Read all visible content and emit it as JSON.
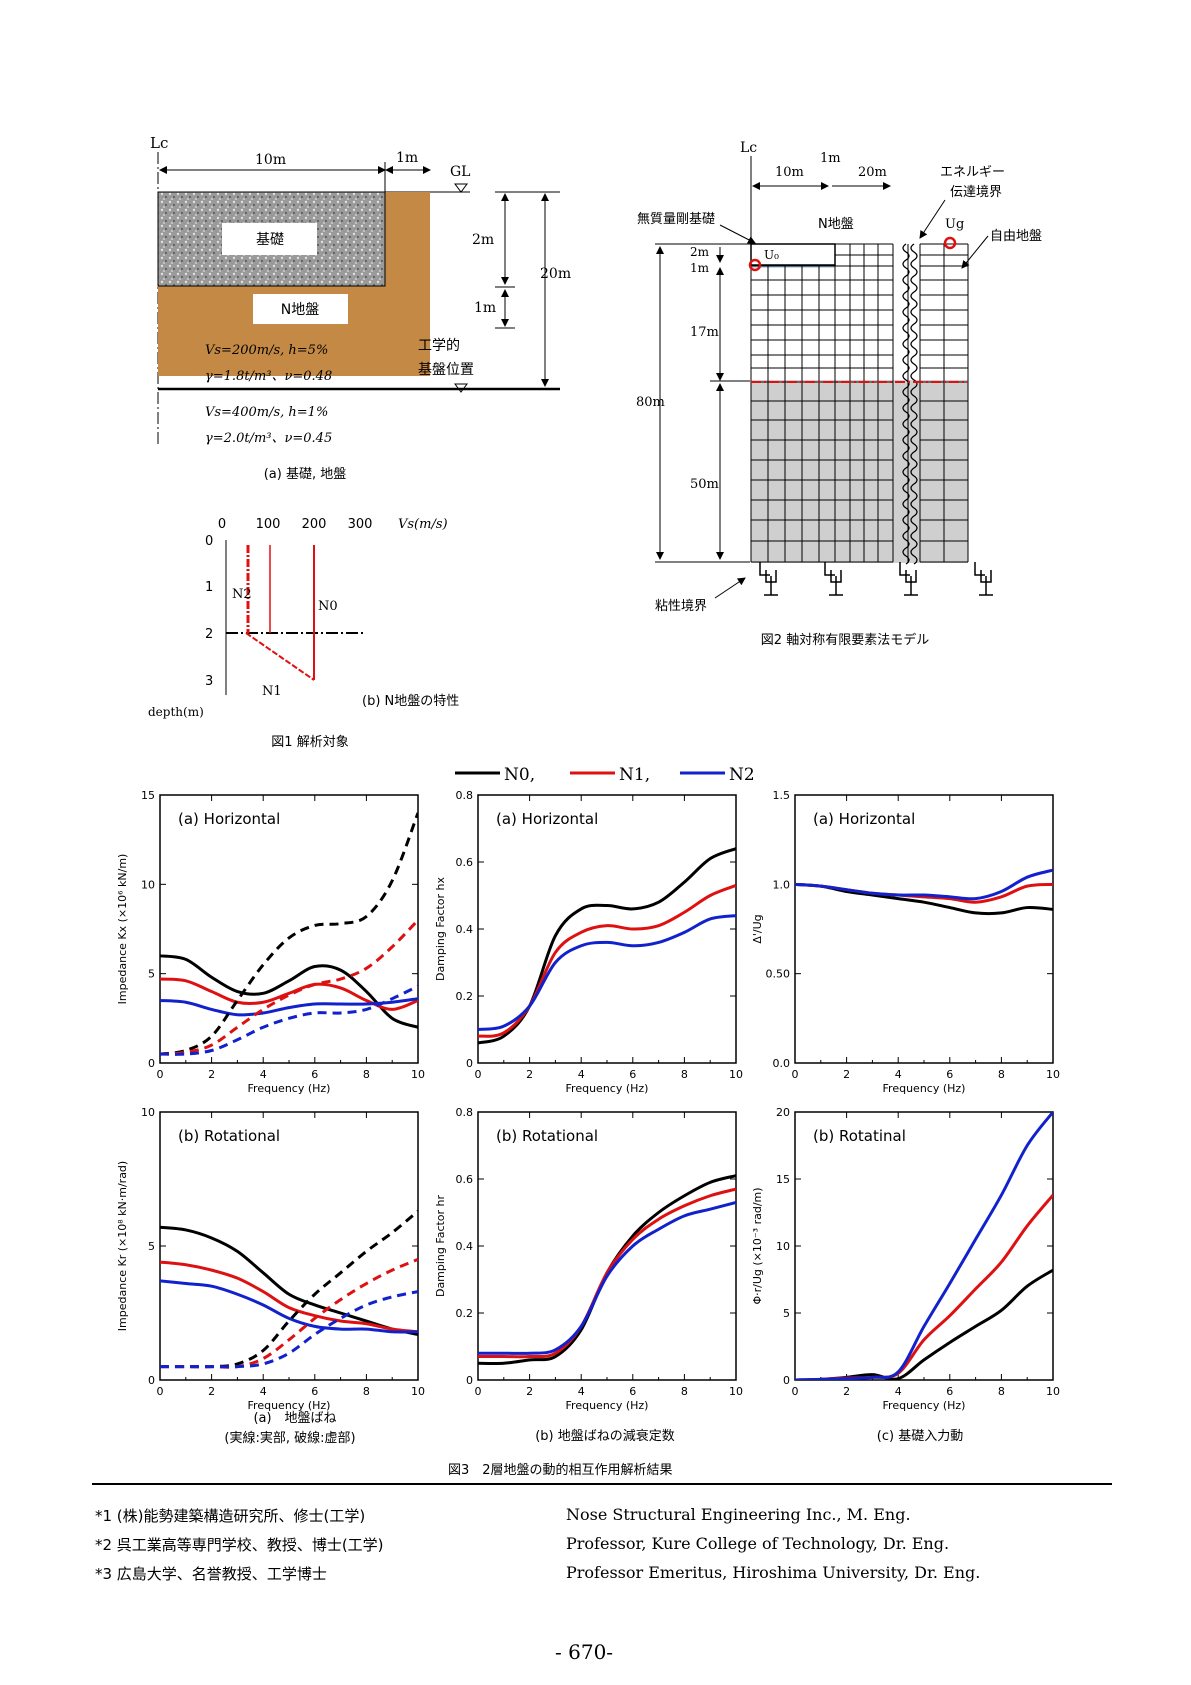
{
  "fig1": {
    "lc": "Lc",
    "dim_10m": "10m",
    "dim_1m": "1m",
    "gl": "GL",
    "foundation_label": "基礎",
    "soil_label": "N地盤",
    "dim_2m": "2m",
    "dim_1m_b": "1m",
    "dim_20m": "20m",
    "layer1_a": "Vs=200m/s, h=5%",
    "layer1_b": "γ=1.8t/m³、ν=0.48",
    "layer2_a": "Vs=400m/s, h=1%",
    "layer2_b": "γ=2.0t/m³、ν=0.45",
    "base_label_1": "工学的",
    "base_label_2": "基盤位置",
    "caption_a": "(a) 基礎, 地盤",
    "vs_ticks": [
      "0",
      "100",
      "200",
      "300"
    ],
    "vs_unit": "Vs(m/s)",
    "depth_ticks": [
      "0",
      "1",
      "2",
      "3"
    ],
    "depth_label": "depth(m)",
    "n0": "N0",
    "n1": "N1",
    "n2": "N2",
    "caption_b": "(b) N地盤の特性",
    "title": "図1 解析対象"
  },
  "fig2": {
    "lc": "Lc",
    "dim_10m": "10m",
    "dim_1m": "1m",
    "dim_20m": "20m",
    "energy_1": "エネルギー",
    "energy_2": "伝達境界",
    "massless": "無質量剛基礎",
    "nsoil": "N地盤",
    "free": "自由地盤",
    "u0": "U₀",
    "ug": "Ug",
    "dim_2m": "2m",
    "dim_1m_b": "1m",
    "dim_17m": "17m",
    "dim_80m": "80m",
    "dim_50m": "50m",
    "viscous": "粘性境界",
    "title": "図2 軸対称有限要素法モデル"
  },
  "legend": {
    "n0": "N0,",
    "n1": "N1,",
    "n2": "N2"
  },
  "colors": {
    "n0": "#000000",
    "n1": "#dd1111",
    "n2": "#1122cc"
  },
  "plots": [
    {
      "title": "(a) Horizontal",
      "ylabel": "Impedance Kx (×10⁶ kN/m)",
      "xlabel": "Frequency (Hz)",
      "yticks": [
        "0",
        "5",
        "10",
        "15"
      ],
      "xticks": [
        "0",
        "2",
        "4",
        "6",
        "8",
        "10"
      ]
    },
    {
      "title": "(a) Horizontal",
      "ylabel": "Damping Factor hx",
      "xlabel": "Frequency (Hz)",
      "yticks": [
        "0",
        "0.2",
        "0.4",
        "0.6",
        "0.8"
      ],
      "xticks": [
        "0",
        "2",
        "4",
        "6",
        "8",
        "10"
      ]
    },
    {
      "title": "(a) Horizontal",
      "ylabel": "Δ'/Ug",
      "xlabel": "Frequency (Hz)",
      "yticks": [
        "0.0",
        "0.50",
        "1.0",
        "1.5"
      ],
      "xticks": [
        "0",
        "2",
        "4",
        "6",
        "8",
        "10"
      ]
    },
    {
      "title": "(b) Rotational",
      "ylabel": "Impedance Kr (×10⁸ kN·m/rad)",
      "xlabel": "Frequency (Hz)",
      "yticks": [
        "0",
        "5",
        "10"
      ],
      "xticks": [
        "0",
        "2",
        "4",
        "6",
        "8",
        "10"
      ]
    },
    {
      "title": "(b) Rotational",
      "ylabel": "Damping Factor hr",
      "xlabel": "Frequency (Hz)",
      "yticks": [
        "0",
        "0.2",
        "0.4",
        "0.6",
        "0.8"
      ],
      "xticks": [
        "0",
        "2",
        "4",
        "6",
        "8",
        "10"
      ]
    },
    {
      "title": "(b) Rotatinal",
      "ylabel": "Φ·r/Ug (×10⁻³ rad/m)",
      "xlabel": "Frequency (Hz)",
      "yticks": [
        "0",
        "5",
        "10",
        "15",
        "20"
      ],
      "xticks": [
        "0",
        "2",
        "4",
        "6",
        "8",
        "10"
      ]
    }
  ],
  "chart_data": [
    {
      "type": "line",
      "title": "(a) Horizontal",
      "xlabel": "Frequency (Hz)",
      "ylabel": "Impedance Kx (×10⁶ kN/m)",
      "xlim": [
        0,
        10
      ],
      "ylim": [
        0,
        15
      ],
      "x": [
        0,
        1,
        2,
        3,
        4,
        5,
        6,
        7,
        8,
        9,
        10
      ],
      "series": [
        {
          "name": "N0",
          "style": "solid",
          "values": [
            6.0,
            5.8,
            4.8,
            4.0,
            3.9,
            4.6,
            5.4,
            5.2,
            4.0,
            2.5,
            2.0
          ]
        },
        {
          "name": "N1",
          "style": "solid",
          "values": [
            4.7,
            4.6,
            4.0,
            3.4,
            3.4,
            3.9,
            4.4,
            4.2,
            3.5,
            3.0,
            3.5
          ]
        },
        {
          "name": "N2",
          "style": "solid",
          "values": [
            3.5,
            3.4,
            3.0,
            2.7,
            2.8,
            3.1,
            3.3,
            3.3,
            3.3,
            3.4,
            3.6
          ]
        },
        {
          "name": "N0",
          "style": "dashed",
          "values": [
            0.5,
            0.7,
            1.5,
            3.5,
            5.5,
            7.0,
            7.7,
            7.8,
            8.2,
            10.2,
            14.0
          ]
        },
        {
          "name": "N1",
          "style": "dashed",
          "values": [
            0.5,
            0.6,
            1.0,
            2.0,
            3.0,
            3.8,
            4.4,
            4.7,
            5.3,
            6.5,
            8.0
          ]
        },
        {
          "name": "N2",
          "style": "dashed",
          "values": [
            0.5,
            0.5,
            0.7,
            1.3,
            2.0,
            2.5,
            2.8,
            2.8,
            3.0,
            3.6,
            4.3
          ]
        }
      ]
    },
    {
      "type": "line",
      "title": "(a) Horizontal",
      "xlabel": "Frequency (Hz)",
      "ylabel": "Damping Factor hx",
      "xlim": [
        0,
        10
      ],
      "ylim": [
        0,
        0.8
      ],
      "x": [
        0,
        1,
        2,
        3,
        4,
        5,
        6,
        7,
        8,
        9,
        10
      ],
      "series": [
        {
          "name": "N0",
          "style": "solid",
          "values": [
            0.06,
            0.08,
            0.17,
            0.38,
            0.46,
            0.47,
            0.46,
            0.48,
            0.54,
            0.61,
            0.64
          ]
        },
        {
          "name": "N1",
          "style": "solid",
          "values": [
            0.08,
            0.09,
            0.17,
            0.33,
            0.39,
            0.41,
            0.4,
            0.41,
            0.45,
            0.5,
            0.53
          ]
        },
        {
          "name": "N2",
          "style": "solid",
          "values": [
            0.1,
            0.11,
            0.17,
            0.3,
            0.35,
            0.36,
            0.35,
            0.36,
            0.39,
            0.43,
            0.44
          ]
        }
      ]
    },
    {
      "type": "line",
      "title": "(a) Horizontal",
      "xlabel": "Frequency (Hz)",
      "ylabel": "Δ'/Ug",
      "xlim": [
        0,
        10
      ],
      "ylim": [
        0,
        1.5
      ],
      "x": [
        0,
        1,
        2,
        3,
        4,
        5,
        6,
        7,
        8,
        9,
        10
      ],
      "series": [
        {
          "name": "N0",
          "style": "solid",
          "values": [
            1.0,
            0.99,
            0.96,
            0.94,
            0.92,
            0.9,
            0.87,
            0.84,
            0.84,
            0.87,
            0.86
          ]
        },
        {
          "name": "N1",
          "style": "solid",
          "values": [
            1.0,
            0.99,
            0.97,
            0.95,
            0.94,
            0.93,
            0.92,
            0.9,
            0.93,
            0.99,
            1.0
          ]
        },
        {
          "name": "N2",
          "style": "solid",
          "values": [
            1.0,
            0.99,
            0.97,
            0.95,
            0.94,
            0.94,
            0.93,
            0.92,
            0.96,
            1.04,
            1.08
          ]
        }
      ]
    },
    {
      "type": "line",
      "title": "(b) Rotational",
      "xlabel": "Frequency (Hz)",
      "ylabel": "Impedance Kr (×10⁸ kN·m/rad)",
      "xlim": [
        0,
        10
      ],
      "ylim": [
        0,
        10
      ],
      "x": [
        0,
        1,
        2,
        3,
        4,
        5,
        6,
        7,
        8,
        9,
        10
      ],
      "series": [
        {
          "name": "N0",
          "style": "solid",
          "values": [
            5.7,
            5.6,
            5.3,
            4.8,
            4.0,
            3.2,
            2.8,
            2.5,
            2.2,
            1.9,
            1.7
          ]
        },
        {
          "name": "N1",
          "style": "solid",
          "values": [
            4.4,
            4.3,
            4.1,
            3.8,
            3.3,
            2.7,
            2.4,
            2.2,
            2.1,
            1.9,
            1.8
          ]
        },
        {
          "name": "N2",
          "style": "solid",
          "values": [
            3.7,
            3.6,
            3.5,
            3.2,
            2.8,
            2.3,
            2.0,
            1.9,
            1.9,
            1.8,
            1.8
          ]
        },
        {
          "name": "N0",
          "style": "dashed",
          "values": [
            0.5,
            0.5,
            0.5,
            0.6,
            1.1,
            2.2,
            3.2,
            4.0,
            4.8,
            5.5,
            6.3
          ]
        },
        {
          "name": "N1",
          "style": "dashed",
          "values": [
            0.5,
            0.5,
            0.5,
            0.5,
            0.8,
            1.5,
            2.3,
            3.0,
            3.6,
            4.1,
            4.5
          ]
        },
        {
          "name": "N2",
          "style": "dashed",
          "values": [
            0.5,
            0.5,
            0.5,
            0.5,
            0.6,
            1.0,
            1.7,
            2.3,
            2.8,
            3.1,
            3.3
          ]
        }
      ]
    },
    {
      "type": "line",
      "title": "(b) Rotational",
      "xlabel": "Frequency (Hz)",
      "ylabel": "Damping Factor hr",
      "xlim": [
        0,
        10
      ],
      "ylim": [
        0,
        0.8
      ],
      "x": [
        0,
        1,
        2,
        3,
        4,
        5,
        6,
        7,
        8,
        9,
        10
      ],
      "series": [
        {
          "name": "N0",
          "style": "solid",
          "values": [
            0.05,
            0.05,
            0.06,
            0.07,
            0.15,
            0.32,
            0.43,
            0.5,
            0.55,
            0.59,
            0.61
          ]
        },
        {
          "name": "N1",
          "style": "solid",
          "values": [
            0.07,
            0.07,
            0.07,
            0.08,
            0.16,
            0.32,
            0.42,
            0.48,
            0.52,
            0.55,
            0.57
          ]
        },
        {
          "name": "N2",
          "style": "solid",
          "values": [
            0.08,
            0.08,
            0.08,
            0.09,
            0.16,
            0.31,
            0.4,
            0.45,
            0.49,
            0.51,
            0.53
          ]
        }
      ]
    },
    {
      "type": "line",
      "title": "(b) Rotatinal",
      "xlabel": "Frequency (Hz)",
      "ylabel": "Φ·r/Ug (×10⁻³ rad/m)",
      "xlim": [
        0,
        10
      ],
      "ylim": [
        0,
        20
      ],
      "x": [
        0,
        1,
        2,
        3,
        4,
        5,
        6,
        7,
        8,
        9,
        10
      ],
      "series": [
        {
          "name": "N0",
          "style": "solid",
          "values": [
            0,
            0.05,
            0.2,
            0.4,
            0.1,
            1.5,
            2.8,
            4.0,
            5.2,
            7.0,
            8.2
          ]
        },
        {
          "name": "N1",
          "style": "solid",
          "values": [
            0,
            0.05,
            0.15,
            0.2,
            0.5,
            3.0,
            4.8,
            6.8,
            8.8,
            11.5,
            13.8
          ]
        },
        {
          "name": "N2",
          "style": "solid",
          "values": [
            0,
            0.05,
            0.1,
            0.2,
            0.6,
            4.0,
            7.2,
            10.5,
            13.8,
            17.5,
            20.0
          ]
        }
      ]
    }
  ],
  "captions": {
    "a1": "(a)　地盤ばね",
    "a2": "(実線:実部, 破線:虚部)",
    "b": "(b) 地盤ばねの減衰定数",
    "c": "(c) 基礎入力動",
    "fig3": "図3　2層地盤の動的相互作用解析結果"
  },
  "footnotes": {
    "jp": [
      "*1 (株)能勢建築構造研究所、修士(工学)",
      "*2 呉工業高等専門学校、教授、博士(工学)",
      "*3 広島大学、名誉教授、工学博士"
    ],
    "en": [
      "Nose Structural Engineering Inc., M. Eng.",
      "Professor, Kure College of Technology, Dr. Eng.",
      "Professor Emeritus, Hiroshima University, Dr. Eng."
    ]
  },
  "page_number": "- 670-"
}
